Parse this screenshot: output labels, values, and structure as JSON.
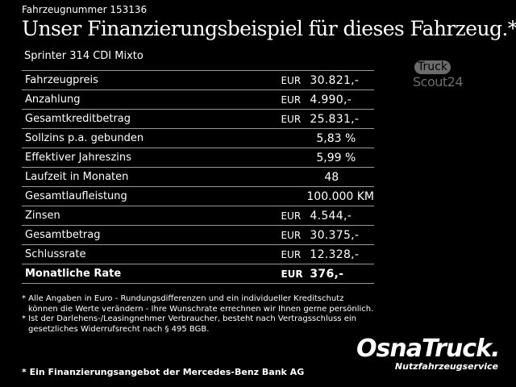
{
  "header": {
    "vehicle_number": "Fahrzeugnummer 153136",
    "title": "Unser Finanzierungsbeispiel für dieses Fahrzeug.*",
    "model": "Sprinter 314 CDI Mixto"
  },
  "truckscout_logo": {
    "line1": "Truck",
    "line2": "Scout24"
  },
  "finance_table": {
    "rows": [
      {
        "label": "Fahrzeugpreis",
        "currency": "EUR",
        "value": "30.821,-"
      },
      {
        "label": "Anzahlung",
        "currency": "EUR",
        "value": "4.990,-"
      },
      {
        "label": "Gesamtkreditbetrag",
        "currency": "EUR",
        "value": "25.831,-"
      },
      {
        "label": "Sollzins p.a. gebunden",
        "currency": "",
        "value": "5,83 %"
      },
      {
        "label": "Effektiver Jahreszins",
        "currency": "",
        "value": "5,99 %"
      },
      {
        "label": "Laufzeit in Monaten",
        "currency": "",
        "value": "48"
      },
      {
        "label": "Gesamtlaufleistung",
        "currency": "",
        "value": "100.000 KM"
      },
      {
        "label": "Zinsen",
        "currency": "EUR",
        "value": "4.544,-"
      },
      {
        "label": "Gesamtbetrag",
        "currency": "EUR",
        "value": "30.375,-"
      },
      {
        "label": "Schlussrate",
        "currency": "EUR",
        "value": "12.328,-"
      },
      {
        "label": "Monatliche Rate",
        "currency": "EUR",
        "value": "376,-"
      }
    ]
  },
  "footnotes": {
    "line1": "* Alle Angaben in Euro - Rundungsdifferenzen und ein individueller Kreditschutz",
    "line2": "können die Werte verändern - Ihre Wunschrate errechnen wir Ihnen gerne persönlich.",
    "line3": "* Ist der Darlehens-/Leasingnehmer Verbraucher, besteht nach Vertragsschluss ein",
    "line4": "gesetzliches Widerrufsrecht nach § 495 BGB."
  },
  "financing_note": "* Ein Finanzierungsangebot der Mercedes-Benz Bank AG",
  "osnatruck_logo": {
    "name": "OsnaTruck.",
    "tagline": "Nutzfahrzeugservice"
  }
}
